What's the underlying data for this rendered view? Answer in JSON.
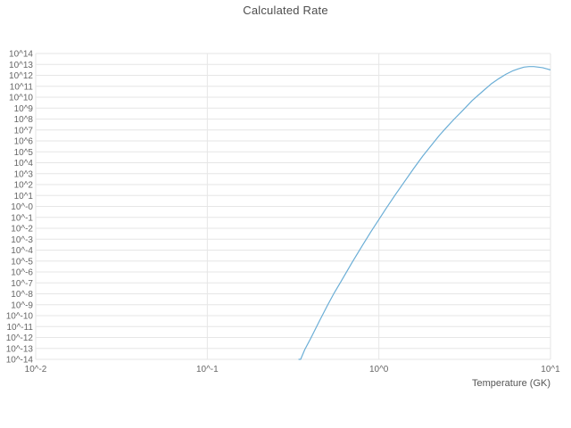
{
  "figure": {
    "title": "Calculated Rate",
    "xlabel": "Temperature (GK)"
  },
  "chart_data": {
    "type": "line",
    "title": "Calculated Rate",
    "xlabel": "Temperature (GK)",
    "ylabel": "",
    "x_scale": "log",
    "y_scale": "log",
    "xlim_log": [
      -2,
      1
    ],
    "ylim_log": [
      -14,
      14
    ],
    "grid": true,
    "legend": "none",
    "colors": {
      "line": "#6baed6",
      "grid": "#e6e6e6",
      "tick_text": "#666666",
      "title_text": "#4d4d4d"
    },
    "x_ticks": [
      {
        "log": -2,
        "label": "10^-2"
      },
      {
        "log": -1,
        "label": "10^-1"
      },
      {
        "log": 0,
        "label": "10^0"
      },
      {
        "log": 1,
        "label": "10^1"
      }
    ],
    "y_ticks": [
      {
        "log": 14,
        "label": "10^14"
      },
      {
        "log": 13,
        "label": "10^13"
      },
      {
        "log": 12,
        "label": "10^12"
      },
      {
        "log": 11,
        "label": "10^11"
      },
      {
        "log": 10,
        "label": "10^10"
      },
      {
        "log": 9,
        "label": "10^9"
      },
      {
        "log": 8,
        "label": "10^8"
      },
      {
        "log": 7,
        "label": "10^7"
      },
      {
        "log": 6,
        "label": "10^6"
      },
      {
        "log": 5,
        "label": "10^5"
      },
      {
        "log": 4,
        "label": "10^4"
      },
      {
        "log": 3,
        "label": "10^3"
      },
      {
        "log": 2,
        "label": "10^2"
      },
      {
        "log": 1,
        "label": "10^1"
      },
      {
        "log": 0,
        "label": "10^-0"
      },
      {
        "log": -1,
        "label": "10^-1"
      },
      {
        "log": -2,
        "label": "10^-2"
      },
      {
        "log": -3,
        "label": "10^-3"
      },
      {
        "log": -4,
        "label": "10^-4"
      },
      {
        "log": -5,
        "label": "10^-5"
      },
      {
        "log": -6,
        "label": "10^-6"
      },
      {
        "log": -7,
        "label": "10^-7"
      },
      {
        "log": -8,
        "label": "10^-8"
      },
      {
        "log": -9,
        "label": "10^-9"
      },
      {
        "log": -10,
        "label": "10^-10"
      },
      {
        "log": -11,
        "label": "10^-11"
      },
      {
        "log": -12,
        "label": "10^-12"
      },
      {
        "log": -13,
        "label": "10^-13"
      },
      {
        "log": -14,
        "label": "10^-14"
      }
    ],
    "series": [
      {
        "name": "calculated-rate",
        "color": "#6baed6",
        "points_T_log10rate": [
          [
            0.34,
            -14.4
          ],
          [
            0.35,
            -14.0
          ],
          [
            0.37,
            -13.1
          ],
          [
            0.4,
            -12.1
          ],
          [
            0.45,
            -10.5
          ],
          [
            0.5,
            -9.1
          ],
          [
            0.55,
            -7.9
          ],
          [
            0.6,
            -6.9
          ],
          [
            0.7,
            -5.1
          ],
          [
            0.8,
            -3.6
          ],
          [
            0.9,
            -2.3
          ],
          [
            1.0,
            -1.2
          ],
          [
            1.1,
            -0.2
          ],
          [
            1.25,
            1.1
          ],
          [
            1.4,
            2.2
          ],
          [
            1.6,
            3.5
          ],
          [
            1.8,
            4.6
          ],
          [
            2.0,
            5.5
          ],
          [
            2.25,
            6.5
          ],
          [
            2.5,
            7.3
          ],
          [
            2.75,
            8.0
          ],
          [
            3.0,
            8.6
          ],
          [
            3.5,
            9.7
          ],
          [
            4.0,
            10.5
          ],
          [
            4.5,
            11.2
          ],
          [
            5.0,
            11.7
          ],
          [
            5.5,
            12.1
          ],
          [
            6.0,
            12.4
          ],
          [
            6.5,
            12.6
          ],
          [
            7.0,
            12.75
          ],
          [
            7.5,
            12.8
          ],
          [
            8.0,
            12.8
          ],
          [
            8.5,
            12.75
          ],
          [
            9.0,
            12.7
          ],
          [
            9.5,
            12.6
          ],
          [
            10.0,
            12.5
          ]
        ]
      }
    ]
  }
}
